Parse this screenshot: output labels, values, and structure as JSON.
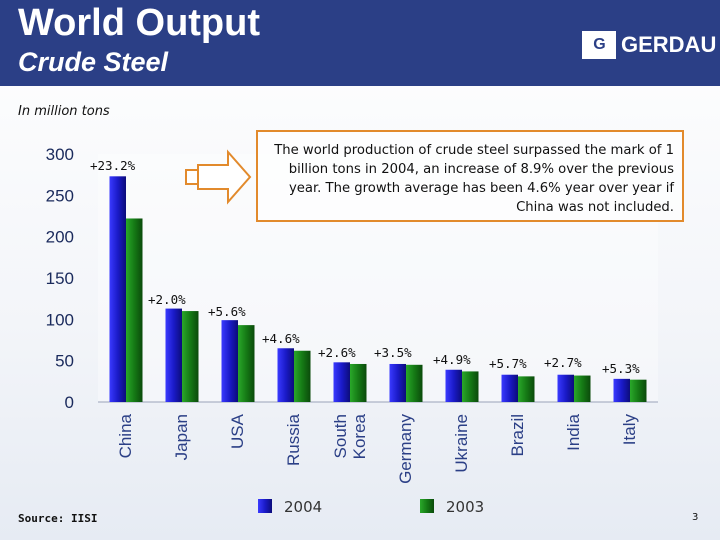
{
  "header": {
    "title": "World Output",
    "subtitle": "Crude Steel",
    "logo_mark": "G",
    "logo_text": "GERDAU"
  },
  "unit_note": "In million tons",
  "callout": "The world production of crude steel surpassed the mark of 1 billion tons in 2004, an increase of 8.9% over the previous year. The growth average has been 4.6% year over year if China was not included.",
  "footer": {
    "source": "Source: IISI",
    "page_number": "3"
  },
  "colors": {
    "header_bg": "#2b3f86",
    "series_2004": "#1a1ac8",
    "series_2003": "#157a15",
    "callout_border": "#e28a2c",
    "arrow": "#e28a2c"
  },
  "chart_data": {
    "type": "bar",
    "title": "Crude Steel",
    "ylabel": "In million tons",
    "ylim": [
      0,
      300
    ],
    "yticks": [
      "0",
      "50",
      "100",
      "150",
      "200",
      "250",
      "300"
    ],
    "categories": [
      "China",
      "Japan",
      "USA",
      "Russia",
      "South Korea",
      "Germany",
      "Ukraine",
      "Brazil",
      "India",
      "Italy"
    ],
    "series": [
      {
        "name": "2004",
        "values": [
          273,
          113,
          99,
          65,
          48,
          46,
          39,
          33,
          33,
          28
        ]
      },
      {
        "name": "2003",
        "values": [
          222,
          110,
          93,
          62,
          46,
          45,
          37,
          31,
          32,
          27
        ]
      }
    ],
    "growth_labels": [
      "+23.2%",
      "+2.0%",
      "+5.6%",
      "+4.6%",
      "+2.6%",
      "+3.5%",
      "+4.9%",
      "+5.7%",
      "+2.7%",
      "+5.3%"
    ],
    "legend": [
      "2004",
      "2003"
    ],
    "legend_position": "bottom"
  }
}
